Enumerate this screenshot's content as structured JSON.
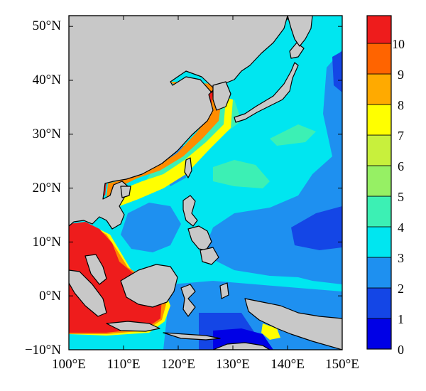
{
  "map": {
    "region": "East Asia and Western Pacific",
    "lon_range": [
      100,
      150
    ],
    "lat_range": [
      -10,
      52
    ],
    "lon_ticks": [
      "100°E",
      "110°E",
      "120°E",
      "130°E",
      "140°E",
      "150°E"
    ],
    "lat_ticks": [
      "−10°N",
      "0°N",
      "10°N",
      "20°N",
      "30°N",
      "40°N",
      "50°N"
    ],
    "land_color": "#c8c8c8",
    "coastline_color": "#000000"
  },
  "colorbar": {
    "levels": [
      "0",
      "1",
      "2",
      "3",
      "4",
      "5",
      "6",
      "7",
      "8",
      "9",
      "10"
    ],
    "colors": [
      "#0000e6",
      "#1446e6",
      "#1e90f0",
      "#00e6f0",
      "#3cf0b4",
      "#96f064",
      "#c8f03c",
      "#ffff00",
      "#ffaa00",
      "#ff6400",
      "#ee1c1c"
    ]
  },
  "field_colors": {
    "ocean_base": "#00e6f0",
    "mid_blue": "#1e90f0",
    "deep_blue": "#1446e6",
    "deepest_blue": "#0000e6",
    "teal": "#3cf0b4",
    "coast_high": "#ee1c1c",
    "coast_orange": "#ff8c00",
    "coast_yellow": "#ffff00"
  }
}
